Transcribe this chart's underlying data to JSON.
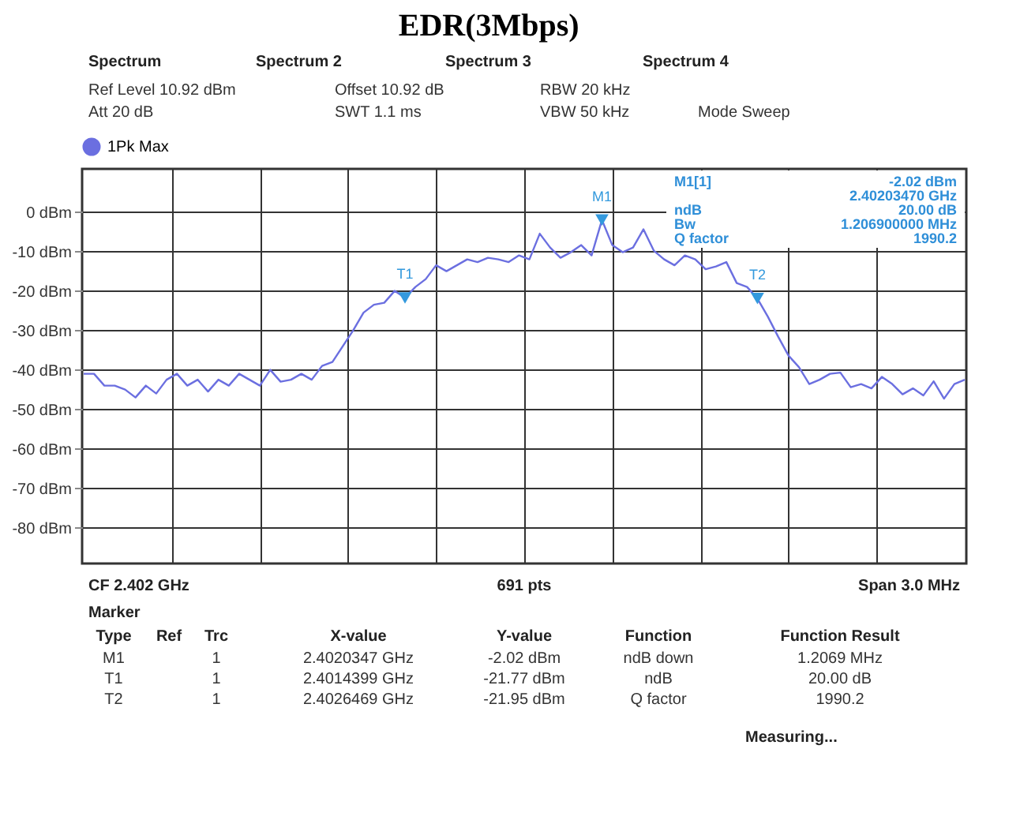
{
  "chart_data": {
    "type": "line",
    "title": "EDR(3Mbps)",
    "categories": [
      null,
      null,
      null,
      null,
      null,
      null,
      null,
      null,
      null,
      null,
      null,
      null,
      null,
      null,
      null,
      null,
      null,
      null,
      null,
      null,
      null,
      null,
      null,
      null,
      null,
      null,
      null,
      null,
      null,
      null,
      null,
      null,
      null,
      null,
      null,
      null,
      null,
      null,
      null,
      null,
      null,
      null,
      null,
      null,
      null,
      null,
      null,
      null,
      null,
      null,
      null,
      null,
      null,
      null,
      null,
      null,
      null,
      null,
      null,
      null,
      null,
      null,
      null,
      null,
      null,
      null,
      null,
      null,
      null,
      null,
      null,
      null,
      null,
      null,
      null,
      null,
      null,
      null,
      null,
      null,
      null,
      null,
      null,
      null,
      null,
      null
    ],
    "ylim": [
      -89.08,
      10.92
    ],
    "yticks": [
      {
        "value": 0,
        "label": "0 dBm"
      },
      {
        "value": -10,
        "label": "-10 dBm"
      },
      {
        "value": -20,
        "label": "-20 dBm"
      },
      {
        "value": -30,
        "label": "-30 dBm"
      },
      {
        "value": -40,
        "label": "-40 dBm"
      },
      {
        "value": -50,
        "label": "-50 dBm"
      },
      {
        "value": -60,
        "label": "-60 dBm"
      },
      {
        "value": -70,
        "label": "-70 dBm"
      },
      {
        "value": -80,
        "label": "-80 dBm"
      }
    ],
    "tick_labels": "y",
    "grid": true,
    "legend": "top left",
    "marker": "none",
    "line_style": "solid",
    "series": [
      {
        "name": "1Pk Max",
        "color": "#6b6fe0",
        "values": [
          -41,
          -41,
          -44,
          -44,
          -45,
          -47,
          -44,
          -46,
          -42.5,
          -41,
          -44,
          -42.5,
          -45.5,
          -42.5,
          -44,
          -41,
          -42.5,
          -44,
          -40,
          -43,
          -42.5,
          -41,
          -42.5,
          -39,
          -38,
          -34,
          -30,
          -25.5,
          -23.5,
          -23,
          -20,
          -21.77,
          -19,
          -17,
          -13.5,
          -15,
          -13.5,
          -12,
          -12.7,
          -11.6,
          -12,
          -12.7,
          -11,
          -12,
          -5.5,
          -9,
          -11.6,
          -10.2,
          -8.4,
          -11,
          -2.02,
          -8.4,
          -10.2,
          -9,
          -4.4,
          -9.8,
          -12,
          -13.5,
          -11,
          -12,
          -14.5,
          -13.8,
          -12.7,
          -18,
          -19,
          -21.95,
          -26.5,
          -31.6,
          -36.4,
          -39.3,
          -43.6,
          -42.5,
          -41,
          -40.7,
          -44.4,
          -43.6,
          -44.7,
          -41.8,
          -43.6,
          -46.2,
          -44.7,
          -46.5,
          -42.9,
          -47.3,
          -43.6,
          -42.5
        ]
      },
      {
        "type": "scatter",
        "marker": "triangle",
        "color": "#3399dd",
        "values": [
          null,
          null,
          null,
          null,
          null,
          null,
          null,
          null,
          null,
          null,
          null,
          null,
          null,
          null,
          null,
          null,
          null,
          null,
          null,
          null,
          null,
          null,
          null,
          null,
          null,
          null,
          null,
          null,
          null,
          null,
          null,
          -21.77,
          null,
          null,
          null,
          null,
          null,
          null,
          null,
          null,
          null,
          null,
          null,
          null,
          null,
          null,
          null,
          null,
          null,
          null,
          -2.02,
          null,
          null,
          null,
          null,
          null,
          null,
          null,
          null,
          null,
          null,
          null,
          null,
          null,
          null,
          -21.95,
          null,
          null,
          null,
          null,
          null,
          null,
          null,
          null,
          null,
          null,
          null,
          null,
          null,
          null,
          null,
          null,
          null,
          null,
          null,
          null
        ]
      }
    ],
    "annotations": [
      "Spectrum",
      "Spectrum 2",
      "Spectrum 3",
      "Spectrum 4",
      "Ref Level 10.92 dBm",
      "Offset 10.92 dB",
      "RBW 20 kHz",
      "Att 20 dB",
      "SWT 1.1 ms",
      "VBW 50 kHz",
      "Mode Sweep",
      "M1[1]",
      "-2.02 dBm",
      "2.40203470 GHz",
      "ndB",
      "20.00 dB",
      "Bw",
      "1.206900000 MHz",
      "Q factor",
      "1990.2",
      "CF 2.402 GHz",
      "691 pts",
      "Span 3.0 MHz",
      "Marker",
      "Type",
      "Ref",
      "Trc",
      "X-value",
      "Y-value",
      "Function",
      "Function Result",
      "M1",
      "1",
      "2.4020347 GHz",
      "-2.02 dBm",
      "ndB down",
      "1.2069 MHz",
      "T1",
      "1",
      "2.4014399 GHz",
      "-21.77 dBm",
      "ndB",
      "20.00 dB",
      "T2",
      "1",
      "2.4026469 GHz",
      "-21.95 dBm",
      "Q factor",
      "1990.2",
      "Measuring...",
      {
        "text": "M1",
        "y": -2.02
      },
      {
        "text": "T1",
        "y": -21.77
      },
      {
        "text": "T2",
        "y": -21.95
      }
    ]
  }
}
